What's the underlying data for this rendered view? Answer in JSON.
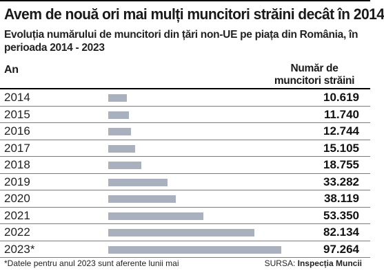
{
  "chart_data": {
    "type": "bar",
    "title": "Avem de nouă ori mai mulți muncitori străini decât în 2014",
    "subtitle": "Evoluția numărului de muncitori din țări non-UE pe piața din România, în perioada 2014 - 2023",
    "xlabel": "An",
    "ylabel": "Număr de muncitori străini",
    "categories": [
      "2014",
      "2015",
      "2016",
      "2017",
      "2018",
      "2019",
      "2020",
      "2021",
      "2022",
      "2023*"
    ],
    "values": [
      10619,
      11740,
      12744,
      15105,
      18755,
      33282,
      38119,
      53350,
      82134,
      97264
    ],
    "value_labels": [
      "10.619",
      "11.740",
      "12.744",
      "15.105",
      "18.755",
      "33.282",
      "38.119",
      "53.350",
      "82.134",
      "97.264"
    ],
    "bar_color": "#a9b1bf"
  },
  "footnote": "*Datele pentru anul 2023 sunt aferente lunii mai",
  "source_prefix": "SURSA: ",
  "source_name": "Inspecția Muncii"
}
